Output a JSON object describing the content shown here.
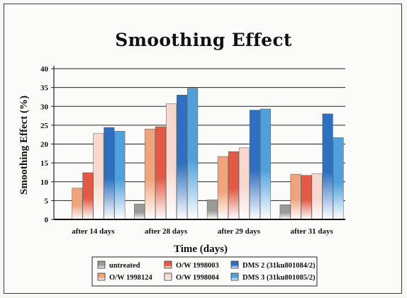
{
  "chart_data": {
    "type": "bar",
    "title": "Smoothing Effect",
    "xlabel": "Time (days)",
    "ylabel": "Smoothing Effect (%)",
    "ylim": [
      0,
      40
    ],
    "yticks": [
      0,
      5,
      10,
      15,
      20,
      25,
      30,
      35,
      40
    ],
    "grid": true,
    "legend_position": "bottom",
    "categories": [
      "after 14 days",
      "after 28 days",
      "after 29 days",
      "after 31 days"
    ],
    "series": [
      {
        "name": "untreated",
        "values": [
          0,
          4.1,
          5.2,
          3.9
        ],
        "color": "#9a9a9a"
      },
      {
        "name": "O/W 1998124",
        "values": [
          8.3,
          24.0,
          16.7,
          12.0
        ],
        "color": "#f0a47c"
      },
      {
        "name": "O/W 1998003",
        "values": [
          12.4,
          24.6,
          18.0,
          11.7
        ],
        "color": "#e25a45"
      },
      {
        "name": "O/W 1998004",
        "values": [
          22.8,
          30.7,
          19.0,
          12.1
        ],
        "color": "#f6d8cf"
      },
      {
        "name": "DMS 2 (31ku801084/2)",
        "values": [
          24.4,
          33.0,
          29.0,
          28.0
        ],
        "color": "#2f6fc0"
      },
      {
        "name": "DMS 3 (31ku801085/2)",
        "values": [
          23.4,
          34.8,
          29.3,
          21.7
        ],
        "color": "#4fa0dc"
      }
    ]
  }
}
